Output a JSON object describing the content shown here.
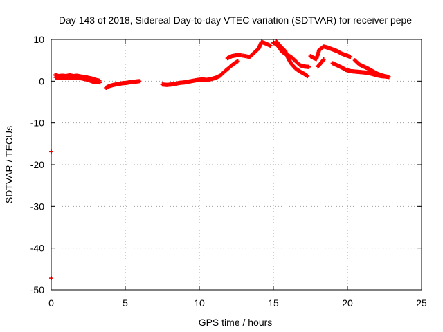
{
  "chart_data": {
    "type": "scatter",
    "title": "Day 143 of 2018, Sidereal Day-to-day VTEC variation (SDTVAR) for receiver pepe",
    "xlabel": "GPS time / hours",
    "ylabel": "SDTVAR / TECUs",
    "xlim": [
      0,
      25
    ],
    "ylim": [
      -50,
      10
    ],
    "xticks": [
      "0",
      "5",
      "10",
      "15",
      "20",
      "25"
    ],
    "yticks": [
      "10",
      "0",
      "-10",
      "-20",
      "-30",
      "-40",
      "-50"
    ],
    "grid": true,
    "color": "#ff0000",
    "marker": "plus",
    "series": [
      {
        "name": "SDTVAR",
        "segments": [
          [
            [
              0.25,
              1.5
            ],
            [
              0.5,
              1.2
            ],
            [
              0.75,
              1.3
            ],
            [
              1.0,
              1.2
            ],
            [
              1.25,
              1.4
            ],
            [
              1.5,
              1.2
            ],
            [
              1.75,
              1.3
            ],
            [
              2.0,
              1.1
            ],
            [
              2.25,
              1.0
            ],
            [
              2.5,
              0.8
            ],
            [
              2.75,
              0.6
            ],
            [
              3.0,
              0.3
            ],
            [
              3.25,
              0.1
            ]
          ],
          [
            [
              0.3,
              0.9
            ],
            [
              0.6,
              0.8
            ],
            [
              1.0,
              0.8
            ],
            [
              1.5,
              0.8
            ],
            [
              2.0,
              0.7
            ],
            [
              2.5,
              0.3
            ],
            [
              2.8,
              -0.1
            ],
            [
              3.1,
              -0.2
            ],
            [
              3.3,
              -0.3
            ]
          ],
          [
            [
              3.7,
              -1.6
            ],
            [
              3.9,
              -1.2
            ],
            [
              4.2,
              -0.9
            ],
            [
              4.5,
              -0.7
            ],
            [
              4.8,
              -0.5
            ],
            [
              5.1,
              -0.4
            ],
            [
              5.4,
              -0.2
            ],
            [
              5.7,
              -0.1
            ],
            [
              5.95,
              0.0
            ]
          ],
          [
            [
              7.5,
              -0.8
            ],
            [
              7.8,
              -0.9
            ],
            [
              8.1,
              -0.8
            ],
            [
              8.4,
              -0.6
            ],
            [
              8.7,
              -0.4
            ],
            [
              9.0,
              -0.3
            ],
            [
              9.3,
              -0.1
            ],
            [
              9.6,
              0.1
            ],
            [
              9.9,
              0.3
            ],
            [
              10.2,
              0.4
            ],
            [
              10.5,
              0.3
            ],
            [
              10.8,
              0.5
            ],
            [
              11.1,
              0.8
            ],
            [
              11.4,
              1.3
            ],
            [
              11.7,
              2.3
            ],
            [
              12.0,
              3.2
            ],
            [
              12.3,
              4.1
            ],
            [
              12.6,
              4.8
            ]
          ],
          [
            [
              11.9,
              5.5
            ],
            [
              12.2,
              6.0
            ],
            [
              12.5,
              6.2
            ],
            [
              12.8,
              6.2
            ],
            [
              13.4,
              5.8
            ],
            [
              13.7,
              6.8
            ],
            [
              14.0,
              7.8
            ],
            [
              14.2,
              9.4
            ],
            [
              14.5,
              9.0
            ],
            [
              14.8,
              8.5
            ]
          ],
          [
            [
              15.0,
              9.2
            ],
            [
              15.2,
              8.9
            ],
            [
              15.4,
              8.0
            ],
            [
              15.6,
              7.0
            ],
            [
              15.9,
              6.3
            ],
            [
              16.2,
              5.8
            ],
            [
              16.5,
              4.8
            ],
            [
              16.8,
              3.8
            ],
            [
              17.1,
              3.5
            ],
            [
              17.4,
              3.4
            ]
          ],
          [
            [
              15.2,
              9.5
            ],
            [
              15.5,
              8.3
            ],
            [
              15.8,
              7.2
            ],
            [
              16.0,
              5.5
            ],
            [
              16.2,
              4.2
            ],
            [
              16.5,
              3.0
            ],
            [
              16.8,
              2.3
            ],
            [
              17.1,
              1.7
            ],
            [
              17.3,
              1.2
            ]
          ],
          [
            [
              17.5,
              6.0
            ],
            [
              17.7,
              5.6
            ],
            [
              17.9,
              5.3
            ],
            [
              18.1,
              7.5
            ],
            [
              18.4,
              8.3
            ],
            [
              18.7,
              8.0
            ],
            [
              19.0,
              7.6
            ],
            [
              19.3,
              7.2
            ],
            [
              19.6,
              6.6
            ],
            [
              19.9,
              6.2
            ],
            [
              20.2,
              5.8
            ]
          ],
          [
            [
              18.0,
              3.5
            ],
            [
              18.2,
              4.3
            ],
            [
              18.4,
              5.2
            ]
          ],
          [
            [
              19.0,
              4.3
            ],
            [
              19.3,
              3.8
            ],
            [
              19.6,
              3.3
            ],
            [
              19.9,
              2.7
            ],
            [
              20.2,
              2.4
            ],
            [
              20.5,
              2.3
            ],
            [
              20.8,
              2.2
            ],
            [
              21.1,
              2.1
            ],
            [
              21.4,
              2.0
            ],
            [
              21.7,
              1.7
            ],
            [
              22.0,
              1.4
            ],
            [
              22.3,
              1.2
            ],
            [
              22.6,
              1.1
            ],
            [
              22.8,
              1.0
            ]
          ],
          [
            [
              20.5,
              5.0
            ],
            [
              20.8,
              4.0
            ],
            [
              21.1,
              3.5
            ],
            [
              21.4,
              3.0
            ],
            [
              21.7,
              2.4
            ],
            [
              22.0,
              1.8
            ],
            [
              22.3,
              1.4
            ],
            [
              22.6,
              1.1
            ]
          ]
        ],
        "outliers": [
          [
            0.0,
            -16.9
          ],
          [
            0.0,
            -47.2
          ]
        ]
      }
    ]
  }
}
